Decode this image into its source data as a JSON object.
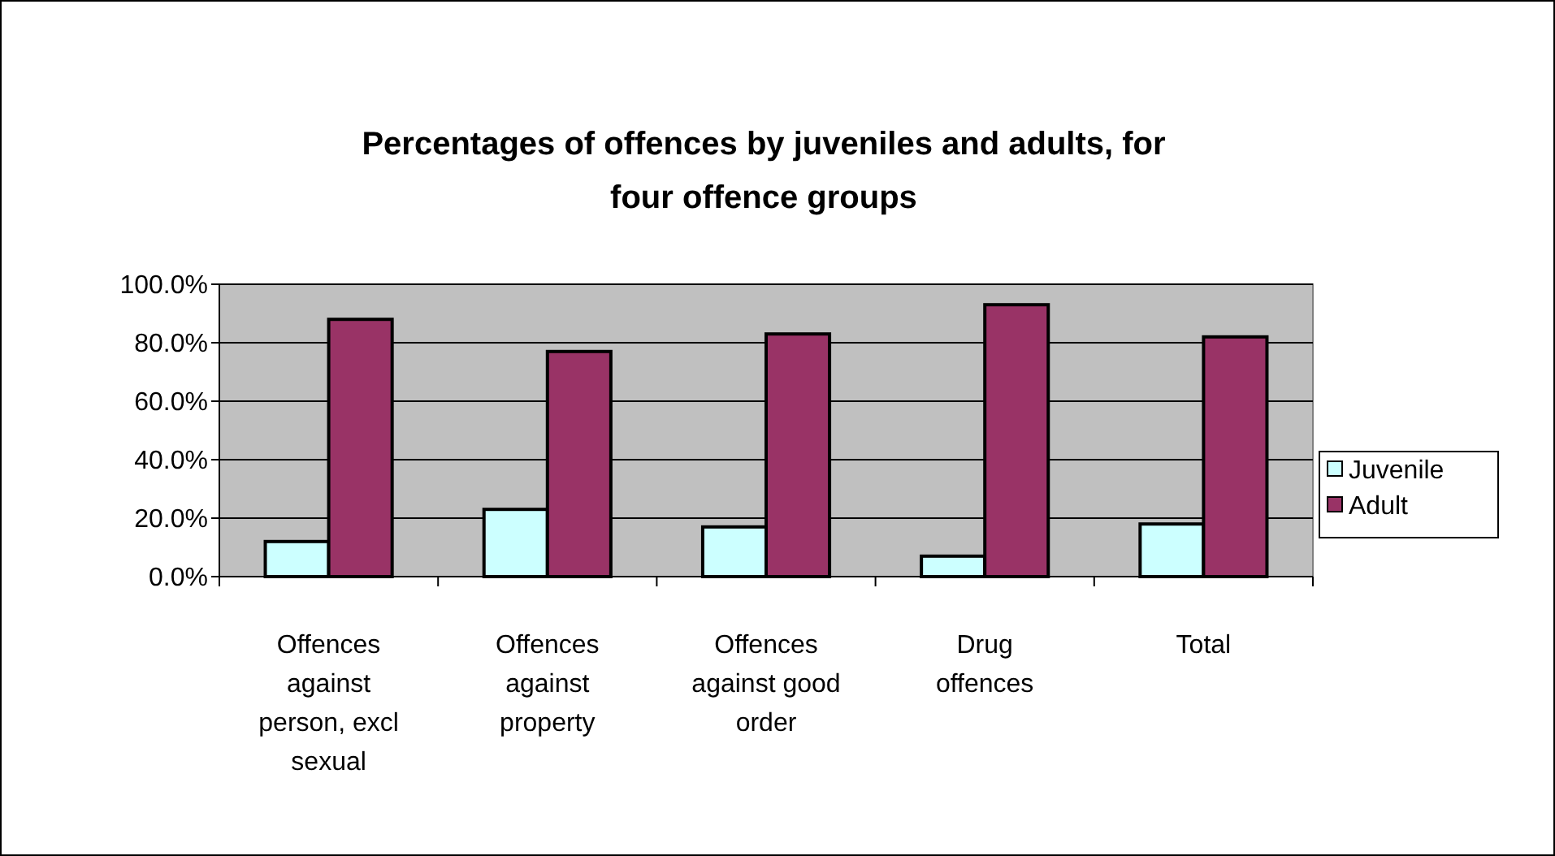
{
  "chart_data": {
    "type": "bar",
    "title": "Percentages of offences by juveniles and adults, for four offence groups",
    "categories": [
      "Offences against person, excl sexual",
      "Offences against property",
      "Offences against good order",
      "Drug offences",
      "Total"
    ],
    "series": [
      {
        "name": "Juvenile",
        "color": "#ccffff",
        "values": [
          12,
          23,
          17,
          7,
          18
        ]
      },
      {
        "name": "Adult",
        "color": "#993366",
        "values": [
          88,
          77,
          83,
          93,
          82
        ]
      }
    ],
    "ylim": [
      0,
      100
    ],
    "yticks": [
      {
        "value": 0,
        "label": "0.0%"
      },
      {
        "value": 20,
        "label": "20.0%"
      },
      {
        "value": 40,
        "label": "40.0%"
      },
      {
        "value": 60,
        "label": "60.0%"
      },
      {
        "value": 80,
        "label": "80.0%"
      },
      {
        "value": 100,
        "label": "100.0%"
      }
    ],
    "grid": "y",
    "legend": "right"
  }
}
